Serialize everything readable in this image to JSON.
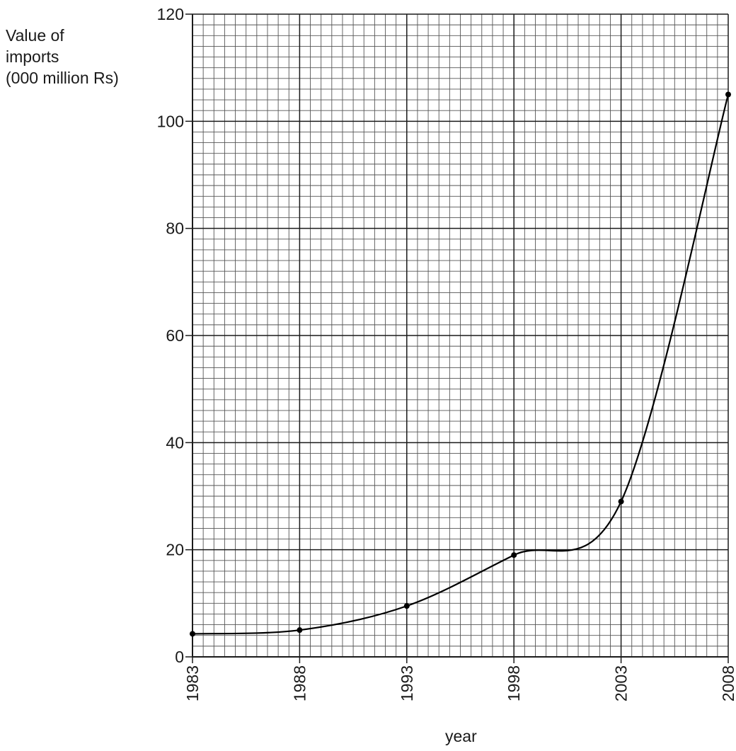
{
  "chart_data": {
    "type": "line",
    "title": "",
    "ylabel_lines": [
      "Value of",
      "imports",
      "(000 million Rs)"
    ],
    "xlabel": "year",
    "x_ticks": [
      "1983",
      "1988",
      "1993",
      "1998",
      "2003",
      "2008"
    ],
    "y_ticks": [
      "0",
      "20",
      "40",
      "60",
      "80",
      "100",
      "120"
    ],
    "xlim": [
      1983,
      2008
    ],
    "ylim": [
      0,
      120
    ],
    "grid": true,
    "series": [
      {
        "x": [
          1983,
          1988,
          1993,
          1998,
          2003,
          2008
        ],
        "values": [
          4.3,
          5.0,
          9.5,
          19.0,
          29.0,
          105.0
        ]
      }
    ]
  }
}
